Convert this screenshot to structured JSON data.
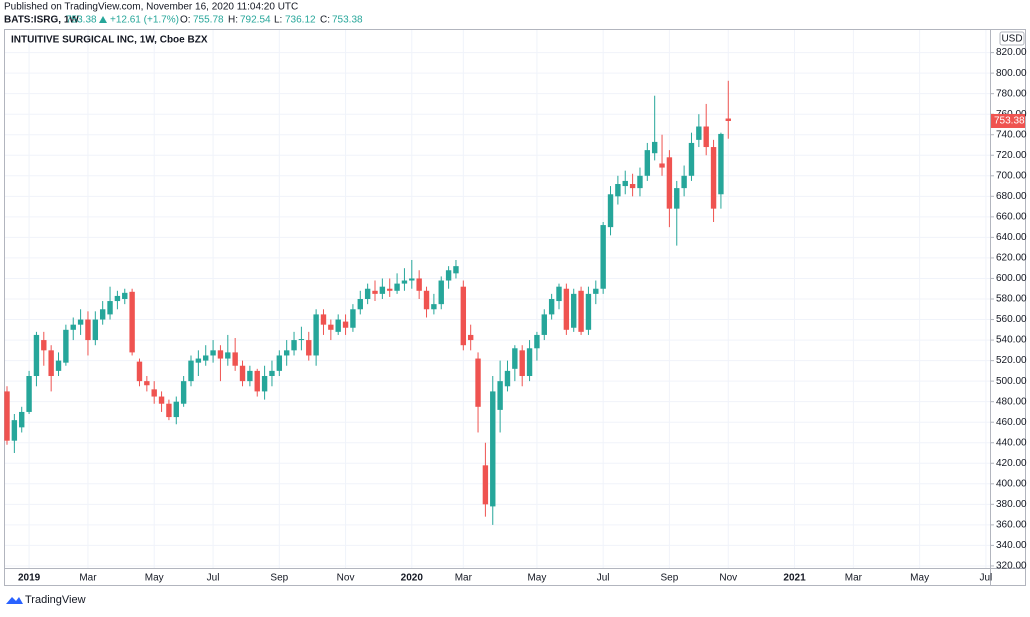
{
  "page": {
    "published": "Published on TradingView.com, November 16, 2020 11:04:20 UTC",
    "symbol": "BATS:ISRG, 1W",
    "change": "+12.61 (+1.7%)",
    "o_label": "O:",
    "h_label": "H:",
    "l_label": "L:",
    "c_label": "C:",
    "currency": "USD",
    "brand": "TradingView"
  },
  "chart_data": {
    "type": "candlestick",
    "title": "INTUITIVE SURGICAL INC, 1W, Cboe BZX",
    "categories": [
      null,
      null,
      null,
      "2019",
      null,
      null,
      null,
      null,
      null,
      null,
      null,
      "Mar",
      null,
      null,
      null,
      null,
      null,
      null,
      null,
      null,
      "May",
      null,
      null,
      null,
      null,
      null,
      null,
      null,
      "Jul",
      null,
      null,
      null,
      null,
      null,
      null,
      null,
      null,
      "Sep",
      null,
      null,
      null,
      null,
      null,
      null,
      null,
      null,
      "Nov",
      null,
      null,
      null,
      null,
      null,
      null,
      null,
      null,
      "2020",
      null,
      null,
      null,
      null,
      null,
      null,
      "Mar",
      null,
      null,
      null,
      null,
      null,
      null,
      null,
      null,
      null,
      "May",
      null,
      null,
      null,
      null,
      null,
      null,
      null,
      null,
      "Jul",
      null,
      null,
      null,
      null,
      null,
      null,
      null,
      null,
      "Sep",
      null,
      null,
      null,
      null,
      null,
      null,
      null,
      "Nov",
      null,
      null,
      null,
      null,
      null,
      null,
      null,
      null,
      "2021",
      null,
      null,
      null,
      null,
      null,
      null,
      null,
      "Mar",
      null,
      null,
      null,
      null,
      null,
      null,
      null,
      null,
      "May",
      null,
      null,
      null,
      null,
      null,
      null,
      null,
      null,
      "Jul",
      null
    ],
    "open": [
      490,
      442,
      455,
      470,
      505,
      540,
      530,
      510,
      518,
      550,
      555,
      560,
      540,
      560,
      565,
      578,
      580,
      587,
      519,
      500,
      492,
      485,
      478,
      465,
      478,
      500,
      518,
      520,
      525,
      530,
      522,
      528,
      515,
      500,
      510,
      490,
      505,
      510,
      525,
      530,
      540,
      540,
      525,
      565,
      555,
      548,
      558,
      552,
      570,
      580,
      588,
      585,
      590,
      588,
      595,
      598,
      600,
      588,
      570,
      575,
      598,
      605,
      592,
      545,
      522,
      418,
      378,
      472,
      495,
      512,
      530,
      505,
      532,
      545,
      565,
      578,
      590,
      552,
      588,
      550,
      585,
      590,
      650,
      680,
      690,
      692,
      688,
      700,
      722,
      712,
      718,
      668,
      688,
      700,
      735,
      748,
      728,
      682,
      755.78,
      null,
      null,
      null,
      null,
      null,
      null,
      null,
      null,
      null,
      null,
      null,
      null,
      null,
      null,
      null,
      null,
      null,
      null,
      null,
      null,
      null,
      null,
      null,
      null,
      null,
      null,
      null,
      null,
      null,
      null,
      null,
      null,
      null,
      null,
      null,
      null
    ],
    "high": [
      495,
      468,
      475,
      510,
      548,
      548,
      535,
      528,
      555,
      562,
      570,
      568,
      568,
      578,
      592,
      588,
      590,
      590,
      522,
      505,
      500,
      490,
      482,
      485,
      505,
      525,
      530,
      535,
      540,
      535,
      545,
      542,
      520,
      515,
      512,
      515,
      520,
      530,
      540,
      548,
      553,
      548,
      570,
      570,
      560,
      565,
      565,
      575,
      588,
      595,
      598,
      600,
      600,
      605,
      610,
      618,
      608,
      592,
      585,
      602,
      612,
      618,
      598,
      555,
      528,
      440,
      505,
      520,
      520,
      535,
      535,
      540,
      548,
      570,
      585,
      595,
      595,
      590,
      592,
      592,
      598,
      655,
      690,
      700,
      705,
      702,
      708,
      732,
      778,
      740,
      725,
      695,
      710,
      742,
      760,
      770,
      735,
      742,
      792.54,
      null,
      null,
      null,
      null,
      null,
      null,
      null,
      null,
      null,
      null,
      null,
      null,
      null,
      null,
      null,
      null,
      null,
      null,
      null,
      null,
      null,
      null,
      null,
      null,
      null,
      null,
      null,
      null,
      null,
      null,
      null,
      null,
      null,
      null,
      null,
      null
    ],
    "low": [
      438,
      430,
      450,
      468,
      495,
      515,
      490,
      505,
      515,
      540,
      545,
      525,
      535,
      555,
      560,
      570,
      575,
      525,
      495,
      490,
      478,
      470,
      462,
      458,
      475,
      495,
      505,
      515,
      518,
      500,
      515,
      510,
      495,
      495,
      485,
      482,
      495,
      505,
      515,
      525,
      530,
      520,
      515,
      545,
      540,
      545,
      545,
      548,
      565,
      575,
      578,
      580,
      582,
      585,
      588,
      590,
      580,
      562,
      565,
      570,
      590,
      600,
      530,
      530,
      450,
      368,
      360,
      450,
      490,
      500,
      495,
      500,
      520,
      540,
      560,
      570,
      545,
      548,
      545,
      545,
      575,
      585,
      642,
      672,
      682,
      680,
      680,
      695,
      715,
      700,
      650,
      632,
      680,
      695,
      728,
      720,
      655,
      668,
      736.12,
      null,
      null,
      null,
      null,
      null,
      null,
      null,
      null,
      null,
      null,
      null,
      null,
      null,
      null,
      null,
      null,
      null,
      null,
      null,
      null,
      null,
      null,
      null,
      null,
      null,
      null,
      null,
      null,
      null,
      null,
      null,
      null,
      null,
      null,
      null,
      null
    ],
    "close": [
      442,
      462,
      470,
      505,
      545,
      530,
      505,
      520,
      550,
      555,
      560,
      540,
      560,
      570,
      578,
      583,
      586,
      528,
      500,
      496,
      485,
      478,
      465,
      480,
      500,
      520,
      522,
      525,
      530,
      522,
      528,
      515,
      500,
      510,
      490,
      505,
      510,
      525,
      530,
      540,
      541,
      525,
      565,
      555,
      550,
      560,
      552,
      570,
      580,
      590,
      585,
      592,
      588,
      595,
      598,
      600,
      588,
      570,
      575,
      598,
      608,
      612,
      535,
      540,
      475,
      380,
      490,
      500,
      510,
      532,
      505,
      532,
      545,
      565,
      580,
      592,
      550,
      585,
      548,
      585,
      590,
      652,
      682,
      692,
      695,
      688,
      700,
      725,
      733,
      708,
      668,
      688,
      700,
      732,
      748,
      728,
      668,
      740.77,
      753.38,
      null,
      null,
      null,
      null,
      null,
      null,
      null,
      null,
      null,
      null,
      null,
      null,
      null,
      null,
      null,
      null,
      null,
      null,
      null,
      null,
      null,
      null,
      null,
      null,
      null,
      null,
      null,
      null,
      null,
      null,
      null,
      null,
      null,
      null,
      null,
      null
    ],
    "up_color": "#26a69a",
    "down_color": "#ef5350",
    "ylim": [
      318,
      842
    ],
    "yticks": [
      {
        "value": 320,
        "label": "320.00"
      },
      {
        "value": 340,
        "label": "340.00"
      },
      {
        "value": 360,
        "label": "360.00"
      },
      {
        "value": 380,
        "label": "380.00"
      },
      {
        "value": 400,
        "label": "400.00"
      },
      {
        "value": 420,
        "label": "420.00"
      },
      {
        "value": 440,
        "label": "440.00"
      },
      {
        "value": 460,
        "label": "460.00"
      },
      {
        "value": 480,
        "label": "480.00"
      },
      {
        "value": 500,
        "label": "500.00"
      },
      {
        "value": 520,
        "label": "520.00"
      },
      {
        "value": 540,
        "label": "540.00"
      },
      {
        "value": 560,
        "label": "560.00"
      },
      {
        "value": 580,
        "label": "580.00"
      },
      {
        "value": 600,
        "label": "600.00"
      },
      {
        "value": 620,
        "label": "620.00"
      },
      {
        "value": 640,
        "label": "640.00"
      },
      {
        "value": 660,
        "label": "660.00"
      },
      {
        "value": 680,
        "label": "680.00"
      },
      {
        "value": 700,
        "label": "700.00"
      },
      {
        "value": 720,
        "label": "720.00"
      },
      {
        "value": 740,
        "label": "740.00"
      },
      {
        "value": 760,
        "label": "760.00"
      },
      {
        "value": 780,
        "label": "780.00"
      },
      {
        "value": 800,
        "label": "800.00"
      },
      {
        "value": 820,
        "label": "820.00"
      }
    ],
    "grid": true
  }
}
